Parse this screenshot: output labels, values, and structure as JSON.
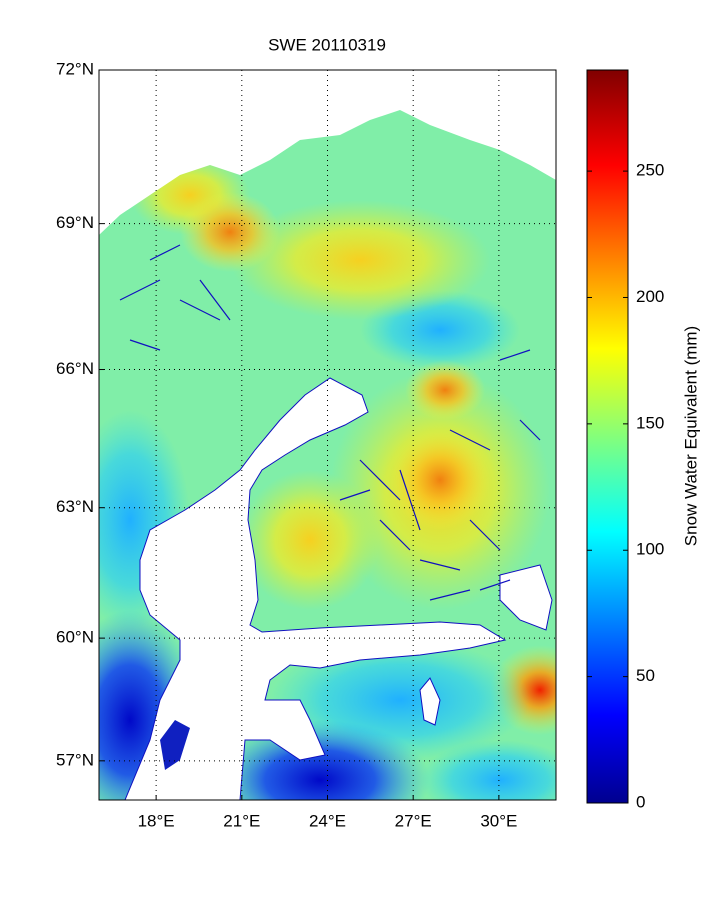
{
  "chart_data": {
    "type": "map",
    "title": "SWE  20110319",
    "xlim": [
      16,
      32
    ],
    "xticks": [
      {
        "value": 18,
        "label": "18°E"
      },
      {
        "value": 21,
        "label": "21°E"
      },
      {
        "value": 24,
        "label": "24°E"
      },
      {
        "value": 27,
        "label": "27°E"
      },
      {
        "value": 30,
        "label": "30°E"
      }
    ],
    "ylim": [
      56,
      72
    ],
    "yticks": [
      {
        "value": 57,
        "label": "57°N"
      },
      {
        "value": 60,
        "label": "60°N"
      },
      {
        "value": 63,
        "label": "63°N"
      },
      {
        "value": 66,
        "label": "66°N"
      },
      {
        "value": 69,
        "label": "69°N"
      },
      {
        "value": 72,
        "label": "72°N"
      }
    ],
    "grid": true,
    "colorbar": {
      "label": "Snow Water Equivalent (mm)",
      "lim": [
        0,
        290
      ],
      "ticks": [
        0,
        50,
        100,
        150,
        200,
        250
      ]
    }
  }
}
